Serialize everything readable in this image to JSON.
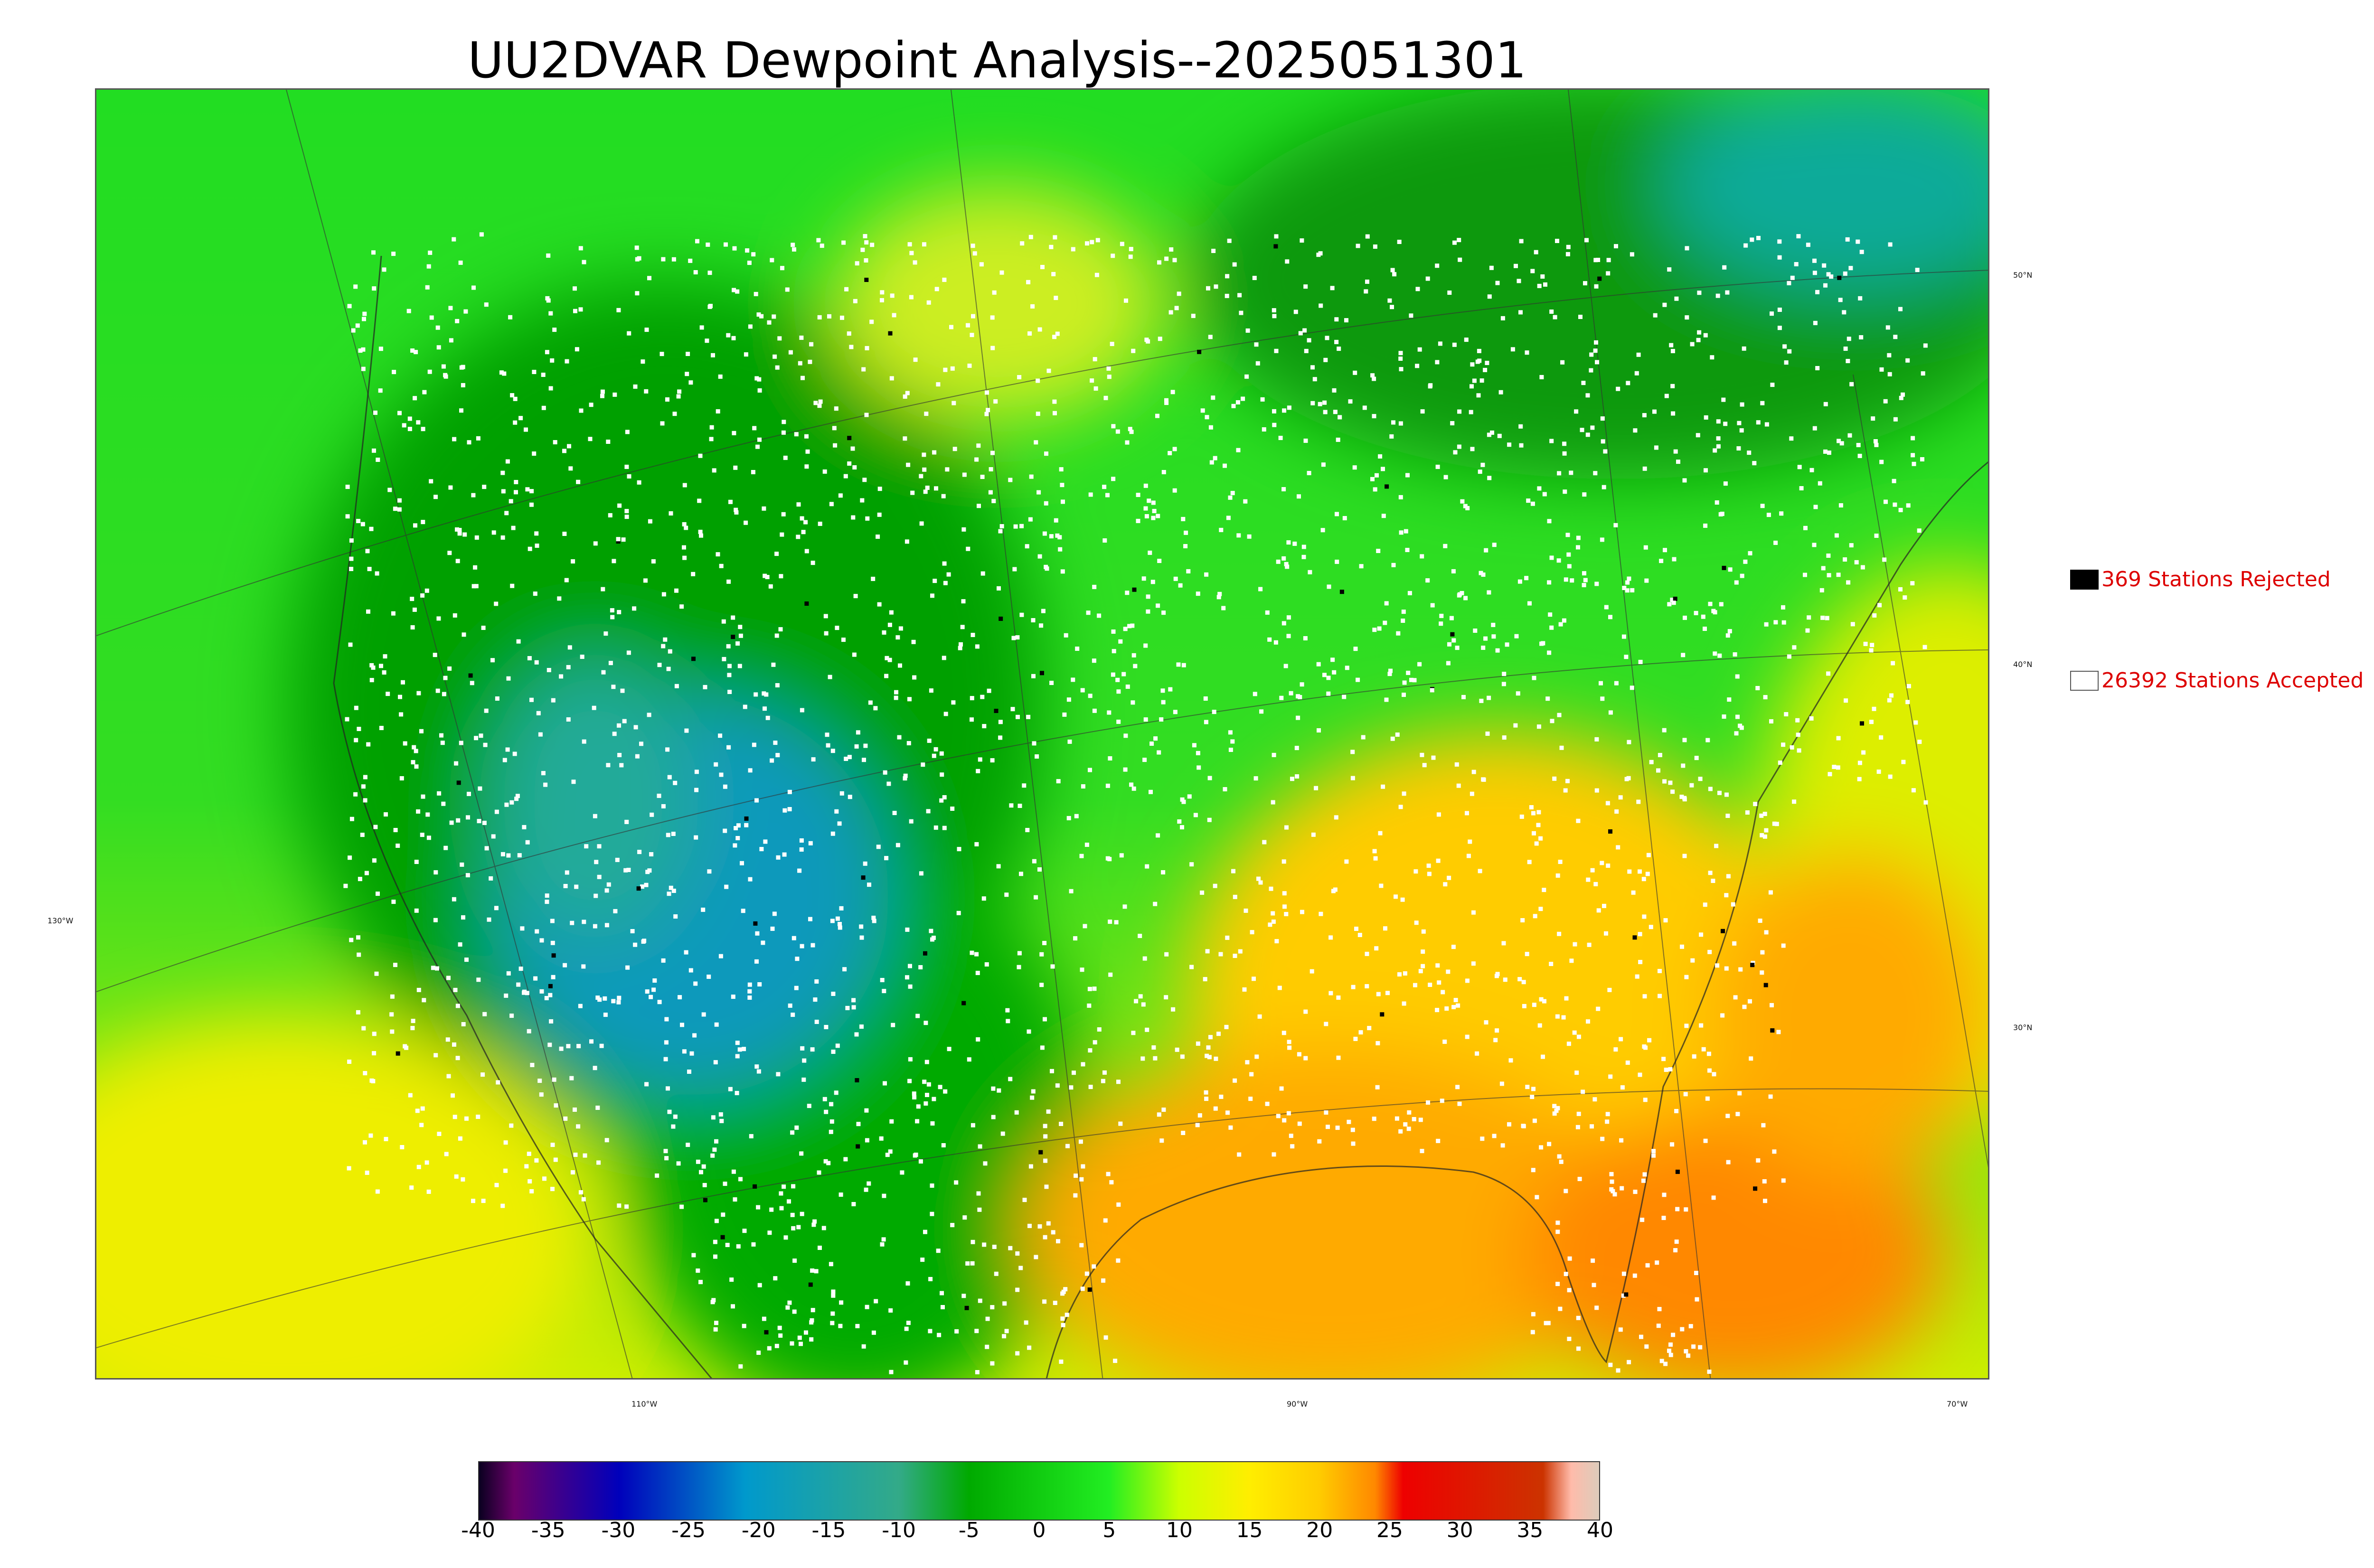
{
  "title": "UU2DVAR Dewpoint Analysis--2025051301",
  "legend": {
    "rejected": {
      "label": "369 Stations Rejected",
      "swatch_color": "#000000",
      "text_color": "#dd0000"
    },
    "accepted": {
      "label": "26392 Stations Accepted",
      "swatch_color": "#ffffff",
      "text_color": "#dd0000"
    }
  },
  "graticule": {
    "latitudes": [
      "50°N",
      "40°N",
      "30°N"
    ],
    "longitudes": [
      "130°W",
      "110°W",
      "90°W",
      "70°W"
    ]
  },
  "colorbar": {
    "ticks": [
      "-40",
      "-35",
      "-30",
      "-25",
      "-20",
      "-15",
      "-10",
      "-5",
      "0",
      "5",
      "10",
      "15",
      "20",
      "25",
      "30",
      "35",
      "40"
    ],
    "colors": [
      {
        "value": -40,
        "color": "#0a0020"
      },
      {
        "value": -37.5,
        "color": "#6a006a"
      },
      {
        "value": -30,
        "color": "#0000bb"
      },
      {
        "value": -21,
        "color": "#0099cc"
      },
      {
        "value": -10,
        "color": "#33aa88"
      },
      {
        "value": -5,
        "color": "#00aa00"
      },
      {
        "value": 0,
        "color": "#11cc11"
      },
      {
        "value": 5,
        "color": "#22ee22"
      },
      {
        "value": 10,
        "color": "#ccff00"
      },
      {
        "value": 15,
        "color": "#ffee00"
      },
      {
        "value": 20,
        "color": "#ffcc00"
      },
      {
        "value": 24,
        "color": "#ff8800"
      },
      {
        "value": 26,
        "color": "#ee0000"
      },
      {
        "value": 36,
        "color": "#cc3300"
      },
      {
        "value": 38,
        "color": "#ffbbaa"
      },
      {
        "value": 40,
        "color": "#ddccbb"
      }
    ]
  }
}
